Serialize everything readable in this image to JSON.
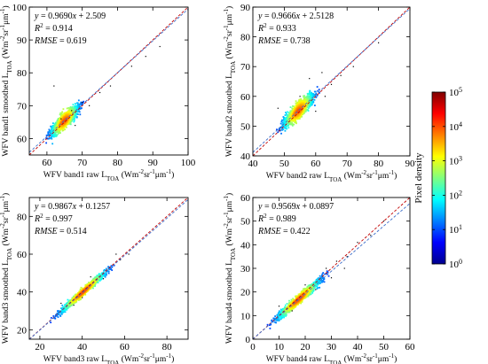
{
  "chart_data": [
    {
      "type": "scatter",
      "subtype": "density-scatter",
      "panel": "band1",
      "xlabel_html": "WFV band1 raw L<sub>TOA</sub> (Wm<sup>-2</sup>sr<sup>-1</sup>μm<sup>-1</sup>)",
      "xlabel_parts": [
        "WFV band1 raw L",
        "TOA",
        " (Wm",
        "-2",
        "sr",
        "-1",
        "μm",
        "-1",
        ")"
      ],
      "ylabel_parts": [
        "WFV band1 smoothed L",
        "TOA",
        " (Wm",
        "-2",
        "sr",
        "-1",
        "μm",
        "-1",
        ")"
      ],
      "xlim": [
        55,
        100
      ],
      "ylim": [
        55,
        100
      ],
      "xticks": [
        60,
        70,
        80,
        90,
        100
      ],
      "yticks": [
        60,
        70,
        80,
        90,
        100
      ],
      "fit": {
        "slope": 0.969,
        "intercept": 2.509
      },
      "stats": {
        "equation": "y = 0.9690x + 2.509",
        "eq_parts": [
          "y",
          " = 0.9690",
          "x",
          " + 2.509"
        ],
        "r2_label": "R",
        "r2_value": " = 0.914",
        "rmse_label": "RMSE",
        "rmse_value": " = 0.619"
      },
      "cloud": {
        "x_range": [
          59,
          71
        ],
        "spread": 1.0
      },
      "outliers": [
        [
          62,
          76
        ],
        [
          64,
          66
        ],
        [
          67,
          68.5
        ],
        [
          70,
          71
        ],
        [
          72,
          70
        ],
        [
          75,
          74
        ],
        [
          78,
          76
        ],
        [
          92,
          88
        ],
        [
          68,
          64
        ],
        [
          84,
          82
        ],
        [
          88,
          85
        ]
      ]
    },
    {
      "type": "scatter",
      "subtype": "density-scatter",
      "panel": "band2",
      "xlabel_parts": [
        "WFV band2 raw L",
        "TOA",
        " (Wm",
        "-2",
        "sr",
        "-1",
        "μm",
        "-1",
        ")"
      ],
      "ylabel_parts": [
        "WFV band2 smoothed L",
        "TOA",
        " (Wm",
        "-2",
        "sr",
        "-1",
        "μm",
        "-1",
        ")"
      ],
      "xlim": [
        40,
        90
      ],
      "ylim": [
        40,
        90
      ],
      "xticks": [
        40,
        50,
        60,
        70,
        80,
        90
      ],
      "yticks": [
        40,
        50,
        60,
        70,
        80,
        90
      ],
      "fit": {
        "slope": 0.9666,
        "intercept": 2.5128
      },
      "stats": {
        "equation": "y = 0.9666x + 2.5128",
        "eq_parts": [
          "y",
          " = 0.9666",
          "x",
          " + 2.5128"
        ],
        "r2_label": "R",
        "r2_value": " = 0.933",
        "rmse_label": "RMSE",
        "rmse_value": " = 0.738"
      },
      "cloud": {
        "x_range": [
          47,
          62
        ],
        "spread": 1.2
      },
      "outliers": [
        [
          48,
          56
        ],
        [
          55,
          60
        ],
        [
          60,
          55
        ],
        [
          62,
          68
        ],
        [
          65,
          64
        ],
        [
          68,
          67
        ],
        [
          72,
          70
        ],
        [
          58,
          66
        ],
        [
          80,
          78
        ],
        [
          63,
          60
        ]
      ]
    },
    {
      "type": "scatter",
      "subtype": "density-scatter",
      "panel": "band3",
      "xlabel_parts": [
        "WFV band3 raw L",
        "TOA",
        " (Wm",
        "-2",
        "sr",
        "-1",
        "μm",
        "-1",
        ")"
      ],
      "ylabel_parts": [
        "WFV band3 smoothed L",
        "TOA",
        " (Wm",
        "-2",
        "sr",
        "-1",
        "μm",
        "-1",
        ")"
      ],
      "xlim": [
        15,
        90
      ],
      "ylim": [
        15,
        90
      ],
      "xticks": [
        20,
        40,
        60,
        80
      ],
      "yticks": [
        20,
        40,
        60,
        80
      ],
      "fit": {
        "slope": 0.9867,
        "intercept": 0.1257
      },
      "stats": {
        "equation": "y = 0.9867x + 0.1257",
        "eq_parts": [
          "y",
          " = 0.9867",
          "x",
          " + 0.1257"
        ],
        "r2_label": "R",
        "r2_value": " = 0.997",
        "rmse_label": "RMSE",
        "rmse_value": " = 0.514"
      },
      "cloud": {
        "x_range": [
          24,
          57
        ],
        "spread": 0.9
      },
      "outliers": [
        [
          30,
          34
        ],
        [
          36,
          33
        ],
        [
          44,
          48
        ],
        [
          50,
          47
        ],
        [
          56,
          60
        ],
        [
          58,
          57
        ],
        [
          40,
          37
        ],
        [
          62,
          60
        ]
      ]
    },
    {
      "type": "scatter",
      "subtype": "density-scatter",
      "panel": "band4",
      "xlabel_parts": [
        "WFV band4 raw L",
        "TOA",
        " (Wm",
        "-2",
        "sr",
        "-1",
        "μm",
        "-1",
        ")"
      ],
      "ylabel_parts": [
        "WFV band4 smoothed L",
        "TOA",
        " (Wm",
        "-2",
        "sr",
        "-1",
        "μm",
        "-1",
        ")"
      ],
      "xlim": [
        0,
        60
      ],
      "ylim": [
        0,
        60
      ],
      "xticks": [
        0,
        10,
        20,
        30,
        40,
        50,
        60
      ],
      "yticks": [
        0,
        10,
        20,
        30,
        40,
        50,
        60
      ],
      "fit": {
        "slope": 0.9569,
        "intercept": 0.0897
      },
      "stats": {
        "equation": "y = 0.9569x + 0.0897",
        "eq_parts": [
          "y",
          " = 0.9569",
          "x",
          " + 0.0897"
        ],
        "r2_label": "R",
        "r2_value": " = 0.989",
        "rmse_label": "RMSE",
        "rmse_value": " = 0.422"
      },
      "cloud": {
        "x_range": [
          5,
          30
        ],
        "spread": 0.9
      },
      "outliers": [
        [
          10,
          14
        ],
        [
          15,
          12
        ],
        [
          20,
          23
        ],
        [
          24,
          21
        ],
        [
          28,
          30
        ],
        [
          32,
          33
        ],
        [
          36,
          35
        ],
        [
          40,
          41
        ],
        [
          45,
          44
        ],
        [
          50,
          50
        ],
        [
          35,
          30
        ],
        [
          30,
          26
        ]
      ]
    }
  ],
  "colorbar": {
    "label": "Pixel density",
    "scale": "log",
    "ticks": [
      {
        "base": "10",
        "exp": "0"
      },
      {
        "base": "10",
        "exp": "1"
      },
      {
        "base": "10",
        "exp": "2"
      },
      {
        "base": "10",
        "exp": "3"
      },
      {
        "base": "10",
        "exp": "4"
      },
      {
        "base": "10",
        "exp": "5"
      }
    ],
    "colormap": [
      "#00008f",
      "#0000ff",
      "#0080ff",
      "#00ffff",
      "#80ff80",
      "#ffff00",
      "#ff8000",
      "#ff0000",
      "#800000"
    ]
  },
  "colors": {
    "one_to_one_line": "#c00000",
    "fit_line": "#3b6cc9",
    "outlier_point": "#000000"
  }
}
